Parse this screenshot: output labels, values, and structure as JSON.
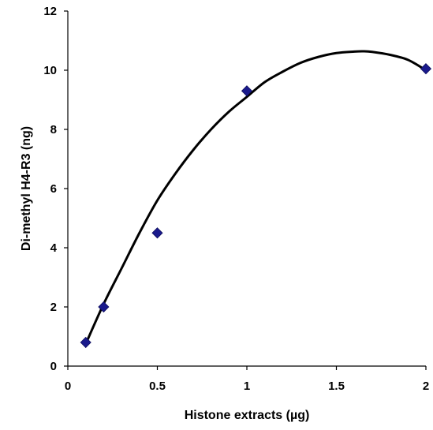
{
  "chart_data": {
    "type": "scatter",
    "title": "",
    "xlabel": "Histone extracts (µg)",
    "ylabel": "Di-methyl H4-R3 (ng)",
    "xlim": [
      0,
      2
    ],
    "ylim": [
      0,
      12
    ],
    "x_ticks": [
      0,
      0.5,
      1,
      1.5,
      2
    ],
    "x_tick_labels": [
      "0",
      "0.5",
      "1",
      "1.5",
      "2"
    ],
    "y_ticks": [
      0,
      2,
      4,
      6,
      8,
      10,
      12
    ],
    "y_tick_labels": [
      "0",
      "2",
      "4",
      "6",
      "8",
      "10",
      "12"
    ],
    "grid": false,
    "legend": "none",
    "series": [
      {
        "type": "scatter",
        "marker": "diamond",
        "color": "#1a1a8c",
        "x": [
          0.1,
          0.2,
          0.5,
          1.0,
          2.0
        ],
        "y": [
          0.8,
          2.0,
          4.5,
          9.3,
          10.05
        ]
      },
      {
        "type": "line",
        "style": "smooth trend curve",
        "color": "#000000",
        "x": [
          0.1,
          0.2,
          0.3,
          0.4,
          0.5,
          0.6,
          0.7,
          0.8,
          0.9,
          1.0,
          1.1,
          1.2,
          1.3,
          1.4,
          1.5,
          1.6,
          1.65,
          1.7,
          1.8,
          1.9,
          2.0
        ],
        "y": [
          0.75,
          2.1,
          3.3,
          4.5,
          5.6,
          6.5,
          7.3,
          8.0,
          8.6,
          9.1,
          9.6,
          9.95,
          10.25,
          10.45,
          10.58,
          10.63,
          10.64,
          10.62,
          10.52,
          10.35,
          10.0
        ]
      }
    ]
  }
}
